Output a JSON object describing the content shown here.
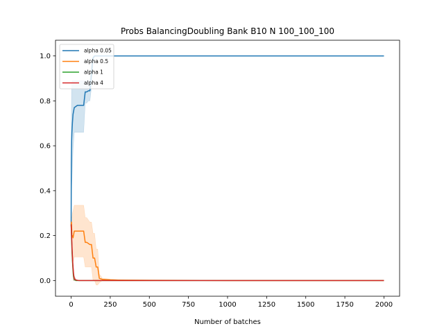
{
  "chart_data": {
    "type": "line",
    "title": "Probs BalancingDoubling Bank B10 N 100_100_100",
    "xlabel": "Number of batches",
    "ylabel": "",
    "xlim": [
      -100,
      2100
    ],
    "ylim": [
      -0.07,
      1.07
    ],
    "xticks": [
      0,
      250,
      500,
      750,
      1000,
      1250,
      1500,
      1750,
      2000
    ],
    "yticks": [
      0.0,
      0.2,
      0.4,
      0.6,
      0.8,
      1.0
    ],
    "xtick_labels": [
      "0",
      "250",
      "500",
      "750",
      "1000",
      "1250",
      "1500",
      "1750",
      "2000"
    ],
    "ytick_labels": [
      "0.0",
      "0.2",
      "0.4",
      "0.6",
      "0.8",
      "1.0"
    ],
    "grid": false,
    "legend_position": "top-left",
    "series": [
      {
        "name": "alpha 0.05",
        "color": "#1f77b4",
        "x": [
          0,
          1,
          3,
          5,
          8,
          12,
          20,
          30,
          40,
          60,
          80,
          90,
          100,
          110,
          120,
          130,
          140,
          150,
          200,
          300,
          500,
          1000,
          1500,
          2000
        ],
        "y": [
          0.25,
          0.52,
          0.62,
          0.66,
          0.7,
          0.74,
          0.77,
          0.775,
          0.78,
          0.78,
          0.78,
          0.84,
          0.84,
          0.845,
          0.845,
          0.92,
          0.99,
          1.0,
          1.0,
          1.0,
          1.0,
          1.0,
          1.0,
          1.0
        ],
        "band_upper": [
          0.25,
          0.7,
          0.85,
          0.88,
          0.89,
          0.89,
          0.89,
          0.89,
          0.89,
          0.89,
          0.89,
          0.89,
          0.89,
          0.89,
          0.89,
          0.98,
          1.0,
          1.0,
          1.0,
          1.0,
          1.0,
          1.0,
          1.0,
          1.0
        ],
        "band_lower": [
          0.25,
          0.35,
          0.4,
          0.44,
          0.5,
          0.58,
          0.66,
          0.66,
          0.66,
          0.66,
          0.66,
          0.79,
          0.79,
          0.8,
          0.8,
          0.86,
          0.98,
          1.0,
          1.0,
          1.0,
          1.0,
          1.0,
          1.0,
          1.0
        ]
      },
      {
        "name": "alpha 0.5",
        "color": "#ff7f0e",
        "x": [
          0,
          2,
          5,
          8,
          12,
          20,
          40,
          60,
          80,
          90,
          100,
          120,
          130,
          140,
          150,
          160,
          170,
          180,
          200,
          250,
          300,
          500,
          1000,
          1500,
          2000
        ],
        "y": [
          0.25,
          0.26,
          0.2,
          0.2,
          0.19,
          0.22,
          0.22,
          0.22,
          0.22,
          0.17,
          0.17,
          0.16,
          0.16,
          0.1,
          0.1,
          0.06,
          0.06,
          0.01,
          0.005,
          0.003,
          0.002,
          0.001,
          0.0,
          0.0,
          0.0
        ],
        "band_upper": [
          0.25,
          0.28,
          0.28,
          0.3,
          0.31,
          0.335,
          0.335,
          0.335,
          0.335,
          0.28,
          0.28,
          0.26,
          0.26,
          0.21,
          0.21,
          0.14,
          0.14,
          0.03,
          0.01,
          0.006,
          0.004,
          0.002,
          0.0,
          0.0,
          0.0
        ],
        "band_lower": [
          0.25,
          0.22,
          0.12,
          0.1,
          0.08,
          0.105,
          0.105,
          0.105,
          0.105,
          0.06,
          0.06,
          0.06,
          0.06,
          0.0,
          0.0,
          -0.02,
          -0.02,
          -0.01,
          0.0,
          0.0,
          0.0,
          0.0,
          0.0,
          0.0,
          0.0
        ]
      },
      {
        "name": "alpha 1",
        "color": "#2ca02c",
        "x": [
          0,
          3,
          6,
          10,
          15,
          20,
          30,
          50,
          100,
          2000
        ],
        "y": [
          0.25,
          0.18,
          0.12,
          0.07,
          0.02,
          0.005,
          0.0,
          0.0,
          0.0,
          0.0
        ],
        "band_upper": [
          0.25,
          0.21,
          0.16,
          0.11,
          0.05,
          0.02,
          0.005,
          0.0,
          0.0,
          0.0
        ],
        "band_lower": [
          0.25,
          0.15,
          0.08,
          0.03,
          0.0,
          0.0,
          0.0,
          0.0,
          0.0,
          0.0
        ]
      },
      {
        "name": "alpha 4",
        "color": "#d62728",
        "x": [
          0,
          3,
          6,
          10,
          15,
          20,
          30,
          50,
          100,
          2000
        ],
        "y": [
          0.25,
          0.2,
          0.14,
          0.08,
          0.03,
          0.008,
          0.002,
          0.0,
          0.0,
          0.0
        ],
        "band_upper": [
          0.25,
          0.22,
          0.17,
          0.12,
          0.06,
          0.02,
          0.005,
          0.0,
          0.0,
          0.0
        ],
        "band_lower": [
          0.25,
          0.18,
          0.1,
          0.04,
          0.0,
          0.0,
          0.0,
          0.0,
          0.0,
          0.0
        ]
      }
    ]
  }
}
